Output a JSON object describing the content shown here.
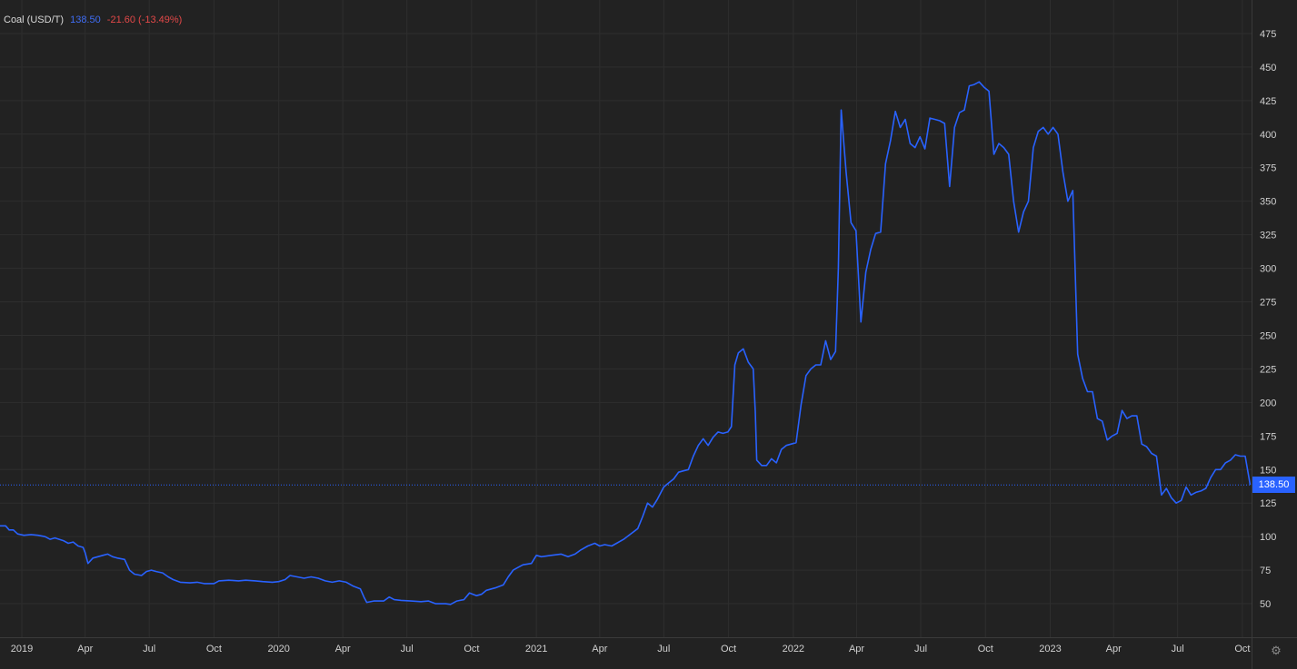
{
  "colors": {
    "background": "#222222",
    "grid": "#2e2e2e",
    "line": "#2962ff",
    "legend_value": "#3f6df5",
    "legend_change": "#e24848",
    "axis_text": "#d0d0d0",
    "axis_border": "#3a3a3a"
  },
  "legend": {
    "name": "Coal (USD/T)",
    "value": "138.50",
    "change": "-21.60 (-13.49%)"
  },
  "price_tag": "138.50",
  "settings_icon": "gear-icon",
  "chart_data": {
    "type": "line",
    "title": "",
    "xlabel": "",
    "ylabel": "",
    "x_range": [
      "2018-12-01",
      "2023-10-14"
    ],
    "ylim": [
      25,
      500
    ],
    "y_ticks": [
      50,
      75,
      100,
      125,
      150,
      175,
      200,
      225,
      250,
      275,
      300,
      325,
      350,
      375,
      400,
      425,
      450,
      475
    ],
    "x_ticks": [
      {
        "date": "2019-01-01",
        "label": "2019"
      },
      {
        "date": "2019-04-01",
        "label": "Apr"
      },
      {
        "date": "2019-07-01",
        "label": "Jul"
      },
      {
        "date": "2019-10-01",
        "label": "Oct"
      },
      {
        "date": "2020-01-01",
        "label": "2020"
      },
      {
        "date": "2020-04-01",
        "label": "Apr"
      },
      {
        "date": "2020-07-01",
        "label": "Jul"
      },
      {
        "date": "2020-10-01",
        "label": "Oct"
      },
      {
        "date": "2021-01-01",
        "label": "2021"
      },
      {
        "date": "2021-04-01",
        "label": "Apr"
      },
      {
        "date": "2021-07-01",
        "label": "Jul"
      },
      {
        "date": "2021-10-01",
        "label": "Oct"
      },
      {
        "date": "2022-01-01",
        "label": "2022"
      },
      {
        "date": "2022-04-01",
        "label": "Apr"
      },
      {
        "date": "2022-07-01",
        "label": "Jul"
      },
      {
        "date": "2022-10-01",
        "label": "Oct"
      },
      {
        "date": "2023-01-01",
        "label": "2023"
      },
      {
        "date": "2023-04-01",
        "label": "Apr"
      },
      {
        "date": "2023-07-01",
        "label": "Jul"
      },
      {
        "date": "2023-10-01",
        "label": "Oct"
      }
    ],
    "reference_line": 138.5,
    "grid": true,
    "legend": "top-left",
    "series": [
      {
        "name": "Coal (USD/T)",
        "points": [
          [
            "2018-12-01",
            108
          ],
          [
            "2018-12-09",
            108
          ],
          [
            "2018-12-14",
            105
          ],
          [
            "2018-12-20",
            105
          ],
          [
            "2018-12-26",
            102
          ],
          [
            "2019-01-04",
            101
          ],
          [
            "2019-01-14",
            101.5
          ],
          [
            "2019-01-24",
            101
          ],
          [
            "2019-02-03",
            100
          ],
          [
            "2019-02-10",
            98
          ],
          [
            "2019-02-17",
            99
          ],
          [
            "2019-03-01",
            97
          ],
          [
            "2019-03-08",
            95
          ],
          [
            "2019-03-15",
            96
          ],
          [
            "2019-03-22",
            93
          ],
          [
            "2019-03-29",
            92
          ],
          [
            "2019-04-01",
            88
          ],
          [
            "2019-04-05",
            80
          ],
          [
            "2019-04-12",
            84
          ],
          [
            "2019-04-19",
            85
          ],
          [
            "2019-04-26",
            86
          ],
          [
            "2019-05-03",
            87
          ],
          [
            "2019-05-10",
            85
          ],
          [
            "2019-05-17",
            84
          ],
          [
            "2019-05-27",
            83
          ],
          [
            "2019-06-03",
            75
          ],
          [
            "2019-06-10",
            72
          ],
          [
            "2019-06-20",
            71
          ],
          [
            "2019-06-27",
            74
          ],
          [
            "2019-07-04",
            75
          ],
          [
            "2019-07-11",
            74
          ],
          [
            "2019-07-20",
            73
          ],
          [
            "2019-07-28",
            70
          ],
          [
            "2019-08-04",
            68
          ],
          [
            "2019-08-14",
            66
          ],
          [
            "2019-08-28",
            65.5
          ],
          [
            "2019-09-07",
            66
          ],
          [
            "2019-09-17",
            65
          ],
          [
            "2019-10-01",
            65
          ],
          [
            "2019-10-08",
            67
          ],
          [
            "2019-10-22",
            67.5
          ],
          [
            "2019-11-05",
            67
          ],
          [
            "2019-11-15",
            67.5
          ],
          [
            "2019-11-29",
            67
          ],
          [
            "2019-12-09",
            66.5
          ],
          [
            "2019-12-23",
            66
          ],
          [
            "2020-01-01",
            66.5
          ],
          [
            "2020-01-10",
            68
          ],
          [
            "2020-01-17",
            71
          ],
          [
            "2020-01-27",
            70
          ],
          [
            "2020-02-06",
            69
          ],
          [
            "2020-02-16",
            70
          ],
          [
            "2020-02-26",
            69
          ],
          [
            "2020-03-07",
            67
          ],
          [
            "2020-03-17",
            66
          ],
          [
            "2020-03-27",
            67
          ],
          [
            "2020-04-06",
            66
          ],
          [
            "2020-04-16",
            63
          ],
          [
            "2020-04-26",
            61
          ],
          [
            "2020-05-01",
            55
          ],
          [
            "2020-05-05",
            51
          ],
          [
            "2020-05-15",
            52
          ],
          [
            "2020-05-29",
            52
          ],
          [
            "2020-06-06",
            55
          ],
          [
            "2020-06-13",
            53
          ],
          [
            "2020-06-23",
            52.5
          ],
          [
            "2020-07-07",
            52
          ],
          [
            "2020-07-21",
            51.5
          ],
          [
            "2020-08-01",
            52
          ],
          [
            "2020-08-11",
            50
          ],
          [
            "2020-08-25",
            50
          ],
          [
            "2020-09-01",
            49.5
          ],
          [
            "2020-09-10",
            52
          ],
          [
            "2020-09-20",
            53
          ],
          [
            "2020-09-28",
            58
          ],
          [
            "2020-10-08",
            56
          ],
          [
            "2020-10-15",
            57
          ],
          [
            "2020-10-22",
            60
          ],
          [
            "2020-11-05",
            62
          ],
          [
            "2020-11-15",
            64
          ],
          [
            "2020-11-22",
            70
          ],
          [
            "2020-11-29",
            75
          ],
          [
            "2020-12-06",
            77
          ],
          [
            "2020-12-13",
            79
          ],
          [
            "2020-12-25",
            80
          ],
          [
            "2021-01-01",
            86
          ],
          [
            "2021-01-08",
            85
          ],
          [
            "2021-01-22",
            86
          ],
          [
            "2021-02-05",
            87
          ],
          [
            "2021-02-15",
            85
          ],
          [
            "2021-02-25",
            87
          ],
          [
            "2021-03-05",
            90
          ],
          [
            "2021-03-15",
            93
          ],
          [
            "2021-03-25",
            95
          ],
          [
            "2021-04-01",
            93
          ],
          [
            "2021-04-08",
            94
          ],
          [
            "2021-04-18",
            93
          ],
          [
            "2021-04-25",
            95
          ],
          [
            "2021-05-05",
            98
          ],
          [
            "2021-05-15",
            102
          ],
          [
            "2021-05-25",
            106
          ],
          [
            "2021-06-01",
            115
          ],
          [
            "2021-06-08",
            125
          ],
          [
            "2021-06-15",
            122
          ],
          [
            "2021-06-22",
            128
          ],
          [
            "2021-07-01",
            137
          ],
          [
            "2021-07-08",
            140
          ],
          [
            "2021-07-15",
            143
          ],
          [
            "2021-07-22",
            148
          ],
          [
            "2021-07-29",
            149
          ],
          [
            "2021-08-05",
            150
          ],
          [
            "2021-08-12",
            160
          ],
          [
            "2021-08-19",
            168
          ],
          [
            "2021-08-26",
            173
          ],
          [
            "2021-09-02",
            168
          ],
          [
            "2021-09-09",
            174
          ],
          [
            "2021-09-16",
            178
          ],
          [
            "2021-09-23",
            177
          ],
          [
            "2021-09-30",
            178
          ],
          [
            "2021-10-05",
            182
          ],
          [
            "2021-10-10",
            228
          ],
          [
            "2021-10-15",
            237
          ],
          [
            "2021-10-22",
            240
          ],
          [
            "2021-10-29",
            230
          ],
          [
            "2021-11-05",
            225
          ],
          [
            "2021-11-08",
            193
          ],
          [
            "2021-11-10",
            157
          ],
          [
            "2021-11-17",
            153
          ],
          [
            "2021-11-24",
            153
          ],
          [
            "2021-12-01",
            158
          ],
          [
            "2021-12-08",
            155
          ],
          [
            "2021-12-15",
            165
          ],
          [
            "2021-12-22",
            168
          ],
          [
            "2021-12-29",
            169
          ],
          [
            "2022-01-05",
            170
          ],
          [
            "2022-01-12",
            198
          ],
          [
            "2022-01-19",
            220
          ],
          [
            "2022-01-26",
            225
          ],
          [
            "2022-02-02",
            228
          ],
          [
            "2022-02-09",
            228
          ],
          [
            "2022-02-16",
            246
          ],
          [
            "2022-02-23",
            232
          ],
          [
            "2022-03-02",
            238
          ],
          [
            "2022-03-06",
            300
          ],
          [
            "2022-03-10",
            418
          ],
          [
            "2022-03-17",
            372
          ],
          [
            "2022-03-24",
            334
          ],
          [
            "2022-03-31",
            328
          ],
          [
            "2022-04-07",
            260
          ],
          [
            "2022-04-14",
            297
          ],
          [
            "2022-04-21",
            314
          ],
          [
            "2022-04-28",
            326
          ],
          [
            "2022-05-05",
            327
          ],
          [
            "2022-05-12",
            378
          ],
          [
            "2022-05-19",
            395
          ],
          [
            "2022-05-26",
            417
          ],
          [
            "2022-06-02",
            405
          ],
          [
            "2022-06-09",
            411
          ],
          [
            "2022-06-16",
            393
          ],
          [
            "2022-06-23",
            390
          ],
          [
            "2022-06-30",
            398
          ],
          [
            "2022-07-07",
            389
          ],
          [
            "2022-07-14",
            412
          ],
          [
            "2022-07-21",
            411
          ],
          [
            "2022-07-28",
            410
          ],
          [
            "2022-08-04",
            408
          ],
          [
            "2022-08-11",
            361
          ],
          [
            "2022-08-18",
            405
          ],
          [
            "2022-08-25",
            416
          ],
          [
            "2022-09-01",
            418
          ],
          [
            "2022-09-08",
            436
          ],
          [
            "2022-09-15",
            437
          ],
          [
            "2022-09-22",
            439
          ],
          [
            "2022-09-29",
            435
          ],
          [
            "2022-10-06",
            432
          ],
          [
            "2022-10-13",
            385
          ],
          [
            "2022-10-20",
            393
          ],
          [
            "2022-10-27",
            390
          ],
          [
            "2022-11-03",
            385
          ],
          [
            "2022-11-10",
            350
          ],
          [
            "2022-11-17",
            327
          ],
          [
            "2022-11-24",
            342
          ],
          [
            "2022-12-01",
            350
          ],
          [
            "2022-12-08",
            390
          ],
          [
            "2022-12-15",
            402
          ],
          [
            "2022-12-22",
            405
          ],
          [
            "2022-12-29",
            400
          ],
          [
            "2023-01-05",
            405
          ],
          [
            "2023-01-12",
            400
          ],
          [
            "2023-01-19",
            372
          ],
          [
            "2023-01-26",
            350
          ],
          [
            "2023-02-02",
            358
          ],
          [
            "2023-02-09",
            236
          ],
          [
            "2023-02-16",
            218
          ],
          [
            "2023-02-23",
            208
          ],
          [
            "2023-03-02",
            208
          ],
          [
            "2023-03-09",
            188
          ],
          [
            "2023-03-16",
            186
          ],
          [
            "2023-03-23",
            172
          ],
          [
            "2023-03-30",
            175
          ],
          [
            "2023-04-06",
            177
          ],
          [
            "2023-04-13",
            194
          ],
          [
            "2023-04-20",
            188
          ],
          [
            "2023-04-27",
            190
          ],
          [
            "2023-05-04",
            190
          ],
          [
            "2023-05-11",
            169
          ],
          [
            "2023-05-18",
            167
          ],
          [
            "2023-05-25",
            162
          ],
          [
            "2023-06-01",
            160
          ],
          [
            "2023-06-08",
            131
          ],
          [
            "2023-06-15",
            136
          ],
          [
            "2023-06-22",
            129
          ],
          [
            "2023-06-29",
            125
          ],
          [
            "2023-07-06",
            127
          ],
          [
            "2023-07-13",
            137
          ],
          [
            "2023-07-20",
            131
          ],
          [
            "2023-07-27",
            133
          ],
          [
            "2023-08-03",
            134
          ],
          [
            "2023-08-10",
            136
          ],
          [
            "2023-08-17",
            144
          ],
          [
            "2023-08-24",
            150
          ],
          [
            "2023-08-31",
            150
          ],
          [
            "2023-09-07",
            155
          ],
          [
            "2023-09-14",
            157
          ],
          [
            "2023-09-21",
            161
          ],
          [
            "2023-09-28",
            160
          ],
          [
            "2023-10-05",
            160
          ],
          [
            "2023-10-12",
            138.5
          ]
        ]
      }
    ]
  }
}
